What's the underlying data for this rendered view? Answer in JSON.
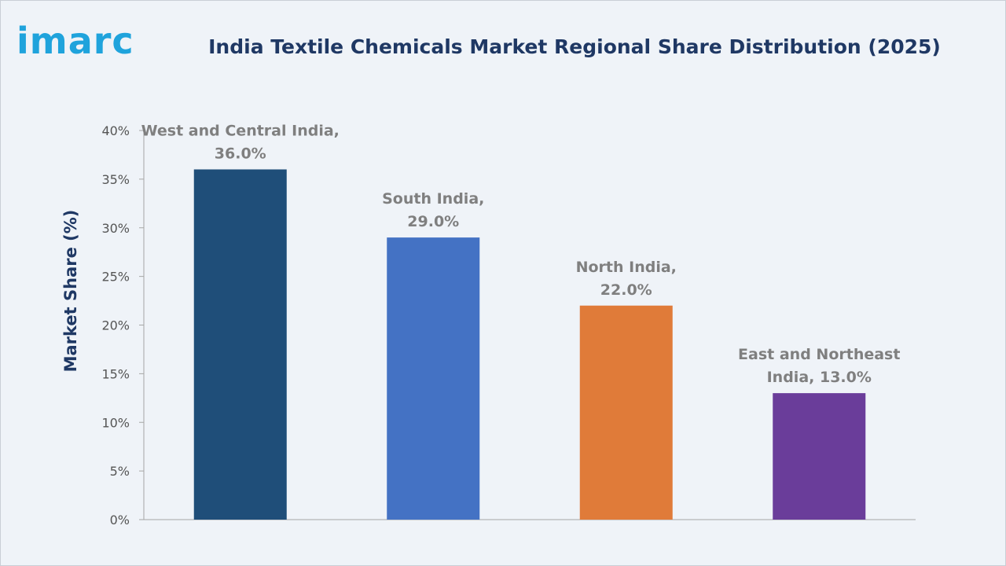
{
  "brand": {
    "logo_text": "imarc",
    "logo_color": "#1fa3dc"
  },
  "chart_data": {
    "type": "bar",
    "title": "India Textile Chemicals Market Regional Share Distribution (2025)",
    "xlabel": "",
    "ylabel": "Market Share (%)",
    "ylim": [
      0,
      40
    ],
    "yticks": [
      0,
      5,
      10,
      15,
      20,
      25,
      30,
      35,
      40
    ],
    "ytick_format": "percent",
    "grid": false,
    "legend": "none",
    "categories": [
      "West and Central India",
      "South India",
      "North India",
      "East and Northeast India"
    ],
    "values": [
      36.0,
      29.0,
      22.0,
      13.0
    ],
    "data_labels": [
      [
        "West and Central India,",
        "36.0%"
      ],
      [
        "South India,",
        "29.0%"
      ],
      [
        "North India,",
        "22.0%"
      ],
      [
        "East and Northeast",
        "India, 13.0%"
      ]
    ],
    "colors": [
      "#1f4e79",
      "#4472c4",
      "#e07b39",
      "#6a3d9a"
    ]
  }
}
